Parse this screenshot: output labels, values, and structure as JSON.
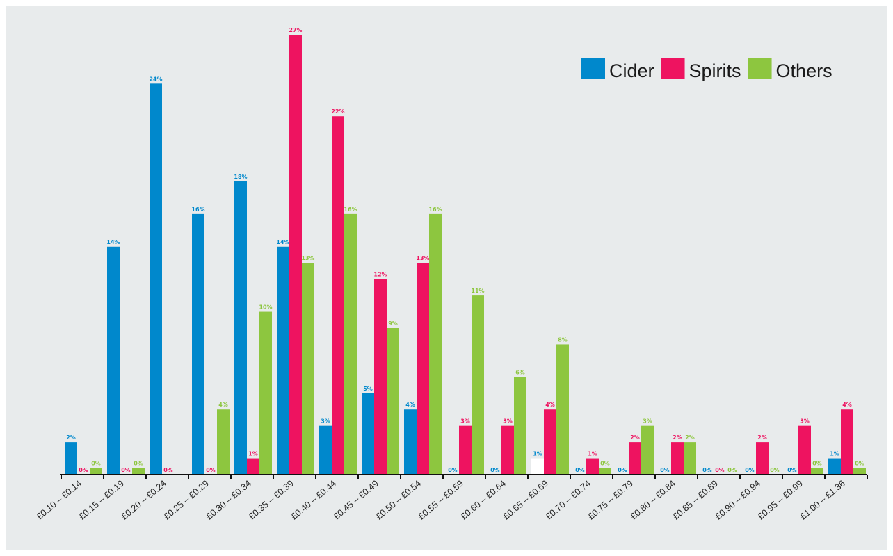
{
  "chart_data": {
    "type": "bar",
    "title": "",
    "xlabel": "",
    "ylabel": "",
    "ylim": [
      0,
      27
    ],
    "grid": false,
    "legend_position": "top-right",
    "categories": [
      "£0.10 – £0.14",
      "£0.15 – £0.19",
      "£0.20 – £0.24",
      "£0.25 – £0.29",
      "£0.30 – £0.34",
      "£0.35 – £0.39",
      "£0.40 – £0.44",
      "£0.45 – £0.49",
      "£0.50 – £0.54",
      "£0.55 – £0.59",
      "£0.60 – £0.64",
      "£0.65 – £0.69",
      "£0.70 – £0.74",
      "£0.75 – £0.79",
      "£0.80 – £0.84",
      "£0.85 – £0.89",
      "£0.90 – £0.94",
      "£0.95 – £0.99",
      "£1.00 – £1.36"
    ],
    "series": [
      {
        "name": "Cider",
        "color": "#0088cc",
        "values": [
          2,
          14,
          24,
          16,
          18,
          14,
          3,
          5,
          4,
          0,
          0,
          1,
          0,
          0,
          0,
          0,
          0,
          0,
          1
        ],
        "labels": [
          "2%",
          "14%",
          "24%",
          "16%",
          "18%",
          "14%",
          "3%",
          "5%",
          "4%",
          "0%",
          "0%",
          "1%",
          "0%",
          "0%",
          "0%",
          "0%",
          "0%",
          "0%",
          "1%"
        ]
      },
      {
        "name": "Spirits",
        "color": "#ee1360",
        "values": [
          0,
          0,
          0,
          0,
          1,
          27,
          22,
          12,
          13,
          3,
          3,
          4,
          1,
          2,
          2,
          0,
          2,
          3,
          4
        ],
        "labels": [
          "0%",
          "0%",
          "0%",
          "0%",
          "1%",
          "27%",
          "22%",
          "12%",
          "13%",
          "3%",
          "3%",
          "4%",
          "1%",
          "2%",
          "2%",
          "0%",
          "2%",
          "3%",
          "4%"
        ]
      },
      {
        "name": "Others",
        "color": "#8dc63f",
        "values": [
          0.4,
          0.4,
          0,
          4,
          10,
          13,
          16,
          9,
          16,
          11,
          6,
          8,
          0.4,
          3,
          2,
          0,
          0,
          0.4,
          0.4
        ],
        "labels": [
          "0%",
          "0%",
          "",
          "4%",
          "10%",
          "13%",
          "16%",
          "9%",
          "16%",
          "11%",
          "6%",
          "8%",
          "0%",
          "3%",
          "2%",
          "0%",
          "0%",
          "0%",
          "0%"
        ],
        "bar_start_offset": [
          0,
          0,
          null,
          -1,
          0,
          0,
          0,
          0,
          0,
          0,
          0,
          0,
          0,
          0,
          0,
          null,
          null,
          0,
          0
        ]
      }
    ],
    "highlight": {
      "series": "Cider",
      "category_index": 11,
      "color": "#ffffff"
    }
  }
}
